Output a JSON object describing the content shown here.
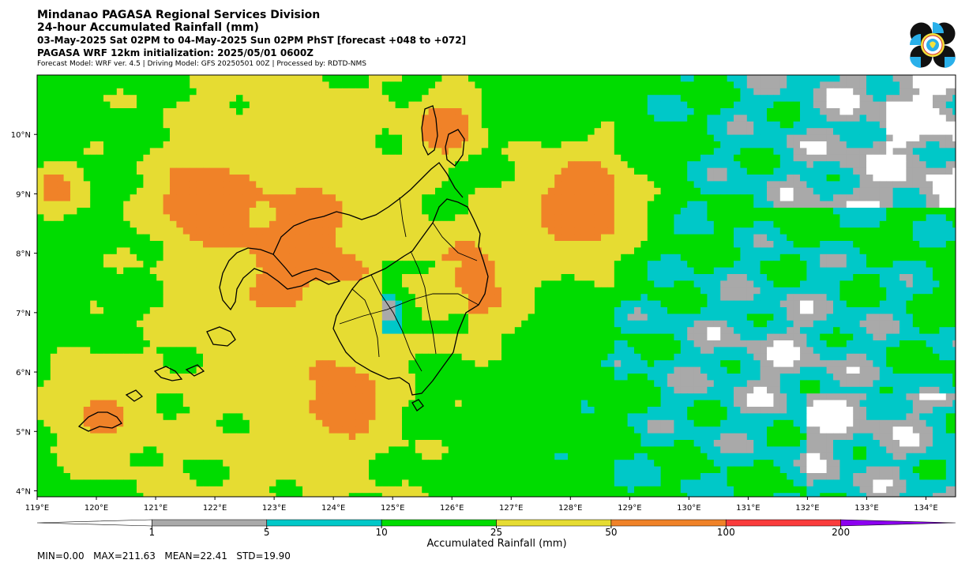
{
  "header": {
    "line1": "Mindanao PAGASA Regional Services Division",
    "line2": "24-hour Accumulated Rainfall (mm)",
    "line3": "03-May-2025 Sat 02PM to 04-May-2025 Sun 02PM PhST [forecast +048 to +072]",
    "line4": "PAGASA WRF 12km initialization: 2025/05/01 0600Z",
    "line5": "Forecast Model: WRF ver. 4.5 | Driving Model: GFS 20250501 00Z | Processed by: RDTD-NMS"
  },
  "axes": {
    "lon_ticks": [
      "119°E",
      "120°E",
      "121°E",
      "122°E",
      "123°E",
      "124°E",
      "125°E",
      "126°E",
      "127°E",
      "128°E",
      "129°E",
      "130°E",
      "131°E",
      "132°E",
      "133°E",
      "134°E"
    ],
    "lat_ticks": [
      "10°N",
      "9°N",
      "8°N",
      "7°N",
      "6°N",
      "5°N",
      "4°N"
    ],
    "lon_range": [
      119,
      134.5
    ],
    "lat_range": [
      3.9,
      11.0
    ]
  },
  "colorbar": {
    "label": "Accumulated Rainfall (mm)",
    "tick_labels": [
      "1",
      "5",
      "10",
      "25",
      "50",
      "100",
      "200"
    ],
    "bins": [
      {
        "from": 0,
        "to": 1,
        "color": "#ffffff"
      },
      {
        "from": 1,
        "to": 5,
        "color": "#a9a9a9"
      },
      {
        "from": 5,
        "to": 10,
        "color": "#00c8c8"
      },
      {
        "from": 10,
        "to": 25,
        "color": "#00dc00"
      },
      {
        "from": 25,
        "to": 50,
        "color": "#e6dc32"
      },
      {
        "from": 50,
        "to": 100,
        "color": "#f08228"
      },
      {
        "from": 100,
        "to": 200,
        "color": "#fa3c3c"
      },
      {
        "from": 200,
        "to": null,
        "color": "#8c00f0"
      }
    ]
  },
  "stats_text": "MIN=0.00   MAX=211.63   MEAN=22.41   STD=19.90",
  "logo": {
    "name": "pagasa-logo"
  }
}
